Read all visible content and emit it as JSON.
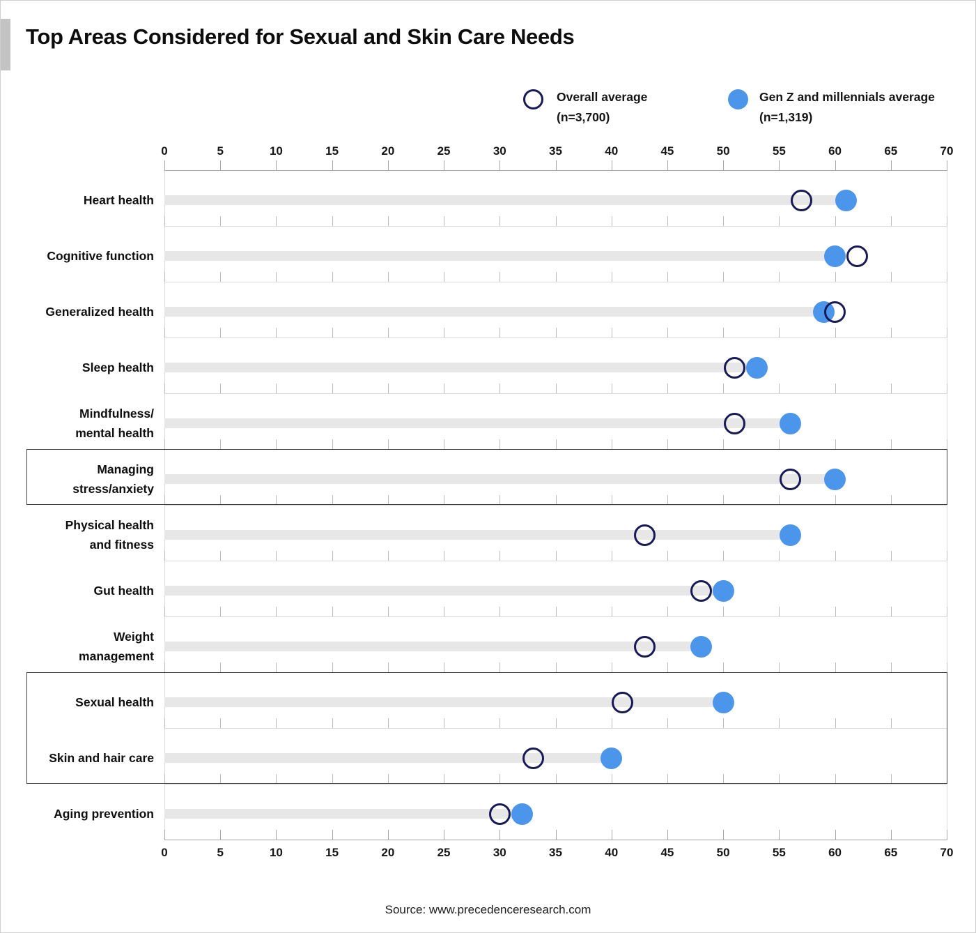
{
  "page": {
    "title": "Top Areas Considered for Sexual and Skin Care Needs",
    "source": "Source: www.precedenceresearch.com"
  },
  "legend": {
    "overall": {
      "label": "Overall average",
      "n": "(n=3,700)",
      "marker": "open-circle"
    },
    "genz": {
      "label": "Gen Z and millennials average",
      "n": "(n=1,319)",
      "marker": "filled-circle"
    }
  },
  "colors": {
    "genz_fill": "#4b95ea",
    "overall_ring": "#171a56",
    "track": "#e7e7e7",
    "separator": "#d9d9d9",
    "axis_line": "#a6a6a6",
    "tick": "#bdbdbd",
    "box_border": "#3d3d3d",
    "accent_bar": "#c3c3c3"
  },
  "chart_data": {
    "type": "scatter",
    "variant": "horizontal dumbbell / lollipop chart",
    "title": "Top Areas Considered for Sexual and Skin Care Needs",
    "categories": [
      "Heart health",
      "Cognitive function",
      "Generalized health",
      "Sleep health",
      "Mindfulness/mental health",
      "Managing stress/anxiety",
      "Physical health and fitness",
      "Gut health",
      "Weight management",
      "Sexual health",
      "Skin and hair care",
      "Aging prevention"
    ],
    "category_label_lines": [
      [
        "Heart health"
      ],
      [
        "Cognitive function"
      ],
      [
        "Generalized health"
      ],
      [
        "Sleep health"
      ],
      [
        "Mindfulness/",
        "mental health"
      ],
      [
        "Managing",
        "stress/anxiety"
      ],
      [
        "Physical health",
        "and fitness"
      ],
      [
        "Gut health"
      ],
      [
        "Weight",
        "management"
      ],
      [
        "Sexual health"
      ],
      [
        "Skin and hair care"
      ],
      [
        "Aging prevention"
      ]
    ],
    "series": [
      {
        "name": "Overall average (n=3,700)",
        "marker": "open-circle",
        "values": [
          57,
          62,
          60,
          51,
          51,
          56,
          43,
          48,
          43,
          41,
          33,
          30
        ]
      },
      {
        "name": "Gen Z and millennials average (n=1,319)",
        "marker": "filled-circle",
        "values": [
          61,
          60,
          59,
          53,
          56,
          60,
          56,
          50,
          48,
          50,
          40,
          32
        ]
      }
    ],
    "xlim": [
      0,
      70
    ],
    "xticks": [
      0,
      5,
      10,
      15,
      20,
      25,
      30,
      35,
      40,
      45,
      50,
      55,
      60,
      65,
      70
    ],
    "axis_labels_position": "top and bottom",
    "legend_position": "top",
    "grid": "light tick marks on each row separator line",
    "highlighted_boxes": [
      {
        "rows": [
          5
        ]
      },
      {
        "rows": [
          9,
          10
        ]
      }
    ]
  }
}
